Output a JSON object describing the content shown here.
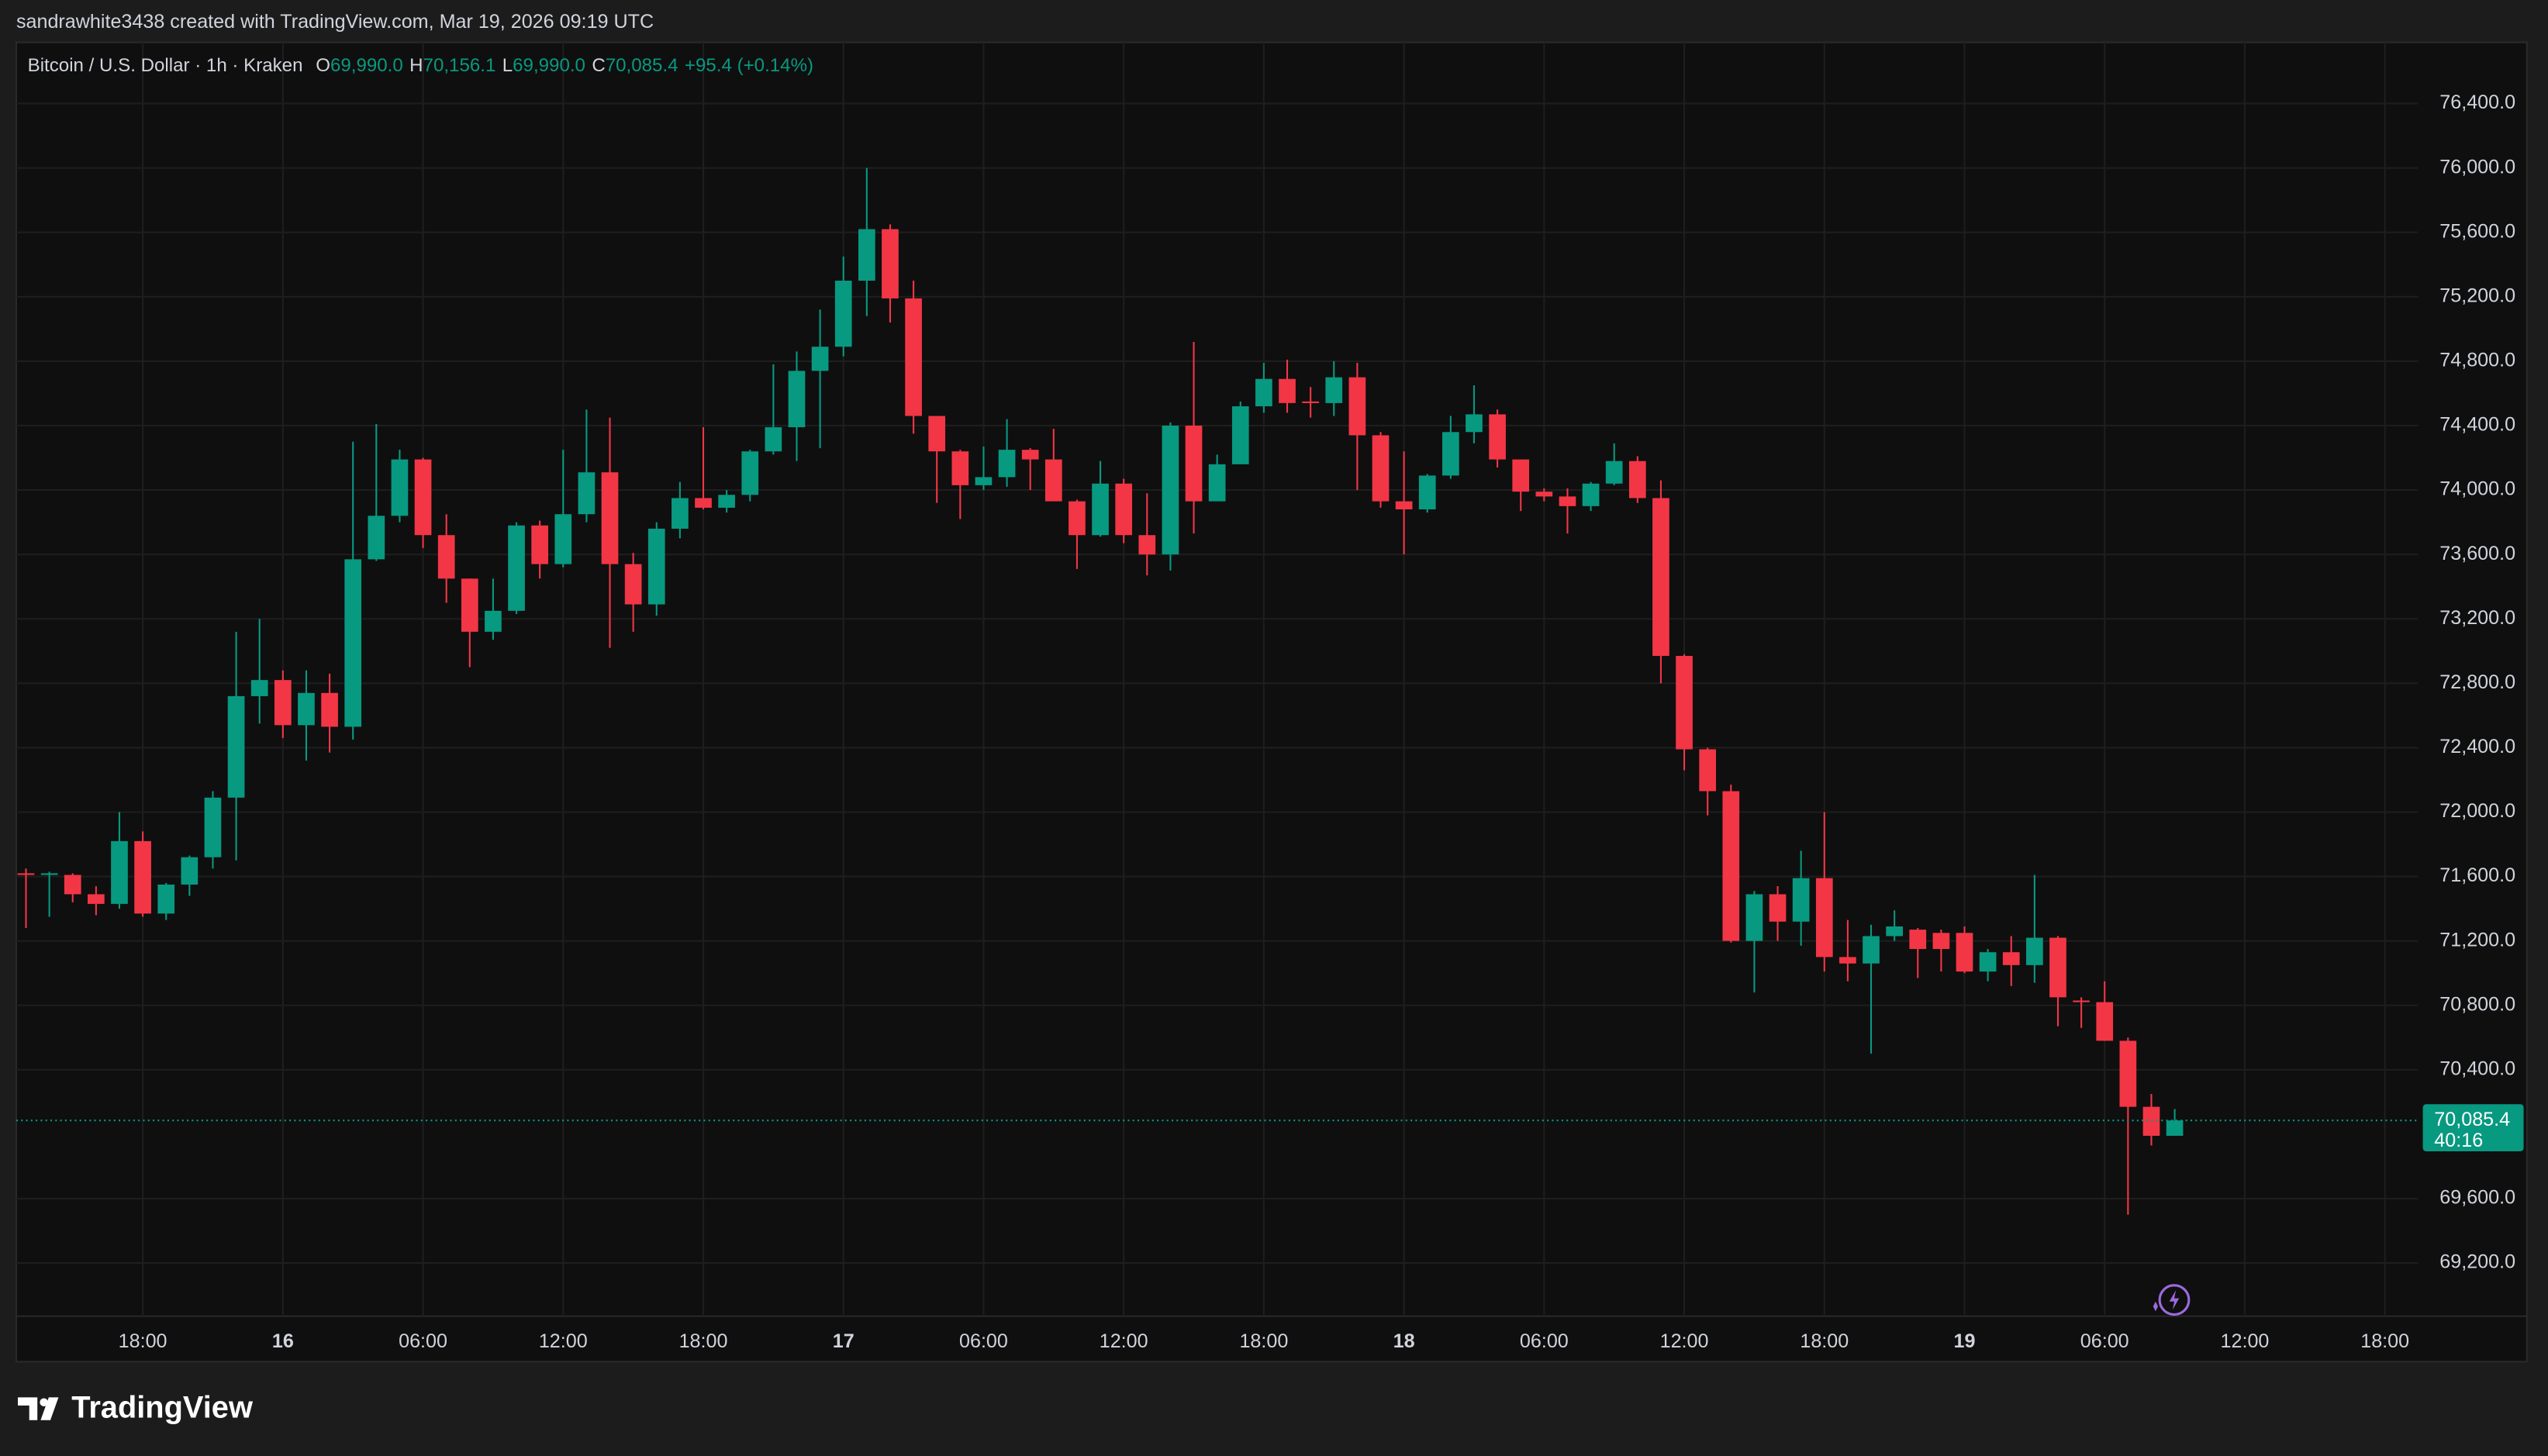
{
  "header": "sandrawhite3438 created with TradingView.com, Mar 19, 2026 09:19 UTC",
  "footer_logo": "TradingView",
  "chart_data": {
    "type": "candlestick",
    "title": "Bitcoin / U.S. Dollar · 1h · Kraken",
    "ohlc_legend": [
      {
        "label": "O",
        "value": "69,990.0"
      },
      {
        "label": "H",
        "value": "70,156.1"
      },
      {
        "label": "L",
        "value": "69,990.0"
      },
      {
        "label": "C",
        "value": "70,085.4"
      }
    ],
    "change": "+95.4 (+0.14%)",
    "last_price_label": "70,085.4",
    "countdown": "40:16",
    "up_color": "#089981",
    "down_color": "#f23645",
    "grid": true,
    "x": [
      "15 13:00",
      "15 14:00",
      "15 15:00",
      "15 16:00",
      "15 17:00",
      "15 18:00",
      "15 19:00",
      "15 20:00",
      "15 21:00",
      "15 22:00",
      "15 23:00",
      "16 00:00",
      "16 01:00",
      "16 02:00",
      "16 03:00",
      "16 04:00",
      "16 05:00",
      "16 06:00",
      "16 07:00",
      "16 08:00",
      "16 09:00",
      "16 10:00",
      "16 11:00",
      "16 12:00",
      "16 13:00",
      "16 14:00",
      "16 15:00",
      "16 16:00",
      "16 17:00",
      "16 18:00",
      "16 19:00",
      "16 20:00",
      "16 21:00",
      "16 22:00",
      "16 23:00",
      "17 00:00",
      "17 01:00",
      "17 02:00",
      "17 03:00",
      "17 04:00",
      "17 05:00",
      "17 06:00",
      "17 07:00",
      "17 08:00",
      "17 09:00",
      "17 10:00",
      "17 11:00",
      "17 12:00",
      "17 13:00",
      "17 14:00",
      "17 15:00",
      "17 16:00",
      "17 17:00",
      "17 18:00",
      "17 19:00",
      "17 20:00",
      "17 21:00",
      "17 22:00",
      "17 23:00",
      "18 00:00",
      "18 01:00",
      "18 02:00",
      "18 03:00",
      "18 04:00",
      "18 05:00",
      "18 06:00",
      "18 07:00",
      "18 08:00",
      "18 09:00",
      "18 10:00",
      "18 11:00",
      "18 12:00",
      "18 13:00",
      "18 14:00",
      "18 15:00",
      "18 16:00",
      "18 17:00",
      "18 18:00",
      "18 19:00",
      "18 20:00",
      "18 21:00",
      "18 22:00",
      "18 23:00",
      "19 00:00",
      "19 01:00",
      "19 02:00",
      "19 03:00",
      "19 04:00",
      "19 05:00",
      "19 06:00",
      "19 07:00",
      "19 08:00",
      "19 09:00"
    ],
    "open": [
      71620,
      71610,
      71610,
      71490,
      71430,
      71820,
      71370,
      71550,
      71720,
      72090,
      72720,
      72820,
      72540,
      72740,
      72530,
      73570,
      73840,
      74190,
      73720,
      73450,
      73120,
      73250,
      73780,
      73540,
      73850,
      74110,
      73540,
      73290,
      73760,
      73950,
      73890,
      73970,
      74240,
      74390,
      74740,
      74890,
      75300,
      75620,
      75190,
      74460,
      74240,
      74030,
      74080,
      74250,
      74190,
      73930,
      73720,
      74040,
      73720,
      73600,
      74400,
      73930,
      74160,
      74520,
      74690,
      74550,
      74540,
      74700,
      74340,
      73930,
      73880,
      74090,
      74360,
      74470,
      74190,
      73990,
      73960,
      73900,
      74040,
      74180,
      73950,
      72970,
      72390,
      72130,
      71200,
      71490,
      71320,
      71590,
      71100,
      71060,
      71230,
      71270,
      71250,
      71250,
      71010,
      71130,
      71050,
      71220,
      70830,
      70820,
      70580,
      70170,
      69990
    ],
    "high": [
      71650,
      71630,
      71620,
      71540,
      72000,
      71880,
      71560,
      71730,
      72130,
      73120,
      73200,
      72880,
      72880,
      72860,
      74300,
      74410,
      74250,
      74200,
      73850,
      73450,
      73450,
      73800,
      73810,
      74250,
      74500,
      74450,
      73610,
      73800,
      74050,
      74390,
      74000,
      74250,
      74780,
      74860,
      75120,
      75450,
      76000,
      75650,
      75300,
      74460,
      74250,
      74270,
      74440,
      74260,
      74380,
      73940,
      74180,
      74070,
      73980,
      74420,
      74920,
      74220,
      74550,
      74790,
      74810,
      74640,
      74800,
      74790,
      74360,
      74240,
      74100,
      74460,
      74650,
      74500,
      74190,
      74010,
      74010,
      74050,
      74290,
      74210,
      74060,
      72980,
      72400,
      72170,
      71510,
      71540,
      71760,
      72000,
      71330,
      71300,
      71390,
      71280,
      71270,
      71290,
      71150,
      71230,
      71610,
      71230,
      70850,
      70950,
      70600,
      70250,
      70156.1
    ],
    "low": [
      71280,
      71350,
      71440,
      71360,
      71400,
      71350,
      71330,
      71480,
      71650,
      71700,
      72550,
      72460,
      72320,
      72370,
      72450,
      73560,
      73800,
      73640,
      73300,
      72900,
      73070,
      73230,
      73450,
      73520,
      73800,
      73020,
      73120,
      73220,
      73700,
      73880,
      73860,
      73930,
      74220,
      74180,
      74260,
      74830,
      75080,
      75040,
      74350,
      73920,
      73820,
      74000,
      74020,
      74000,
      73930,
      73510,
      73710,
      73670,
      73470,
      73500,
      73730,
      73940,
      74170,
      74480,
      74480,
      74450,
      74460,
      74000,
      73890,
      73600,
      73860,
      74070,
      74290,
      74140,
      73870,
      73930,
      73730,
      73870,
      74030,
      73920,
      72800,
      72260,
      71980,
      71190,
      70880,
      71200,
      71170,
      71010,
      70950,
      70500,
      71200,
      70970,
      71010,
      71000,
      70950,
      70920,
      70940,
      70670,
      70660,
      70580,
      69500,
      69930,
      69990
    ],
    "close": [
      71610,
      71620,
      71490,
      71430,
      71820,
      71370,
      71550,
      71720,
      72090,
      72720,
      72820,
      72540,
      72740,
      72530,
      73570,
      73840,
      74190,
      73720,
      73450,
      73120,
      73250,
      73780,
      73540,
      73850,
      74110,
      73540,
      73290,
      73760,
      73950,
      73890,
      73970,
      74240,
      74390,
      74740,
      74890,
      75300,
      75620,
      75190,
      74460,
      74240,
      74030,
      74080,
      74250,
      74190,
      73930,
      73720,
      74040,
      73720,
      73600,
      74400,
      73930,
      74160,
      74520,
      74690,
      74540,
      74540,
      74700,
      74340,
      73930,
      73880,
      74090,
      74360,
      74470,
      74190,
      73990,
      73960,
      73900,
      74040,
      74180,
      73950,
      72970,
      72390,
      72130,
      71200,
      71490,
      71320,
      71590,
      71100,
      71060,
      71230,
      71290,
      71150,
      71150,
      71010,
      71130,
      71050,
      71220,
      70850,
      70820,
      70580,
      70170,
      69990,
      70085.4
    ],
    "xlim": [
      "15 12:35",
      "19 19:25"
    ],
    "xticks": [
      {
        "value": "15 18:00",
        "label": "18:00"
      },
      {
        "value": "16 00:00",
        "label": "16"
      },
      {
        "value": "16 06:00",
        "label": "06:00"
      },
      {
        "value": "16 12:00",
        "label": "12:00"
      },
      {
        "value": "16 18:00",
        "label": "18:00"
      },
      {
        "value": "17 00:00",
        "label": "17"
      },
      {
        "value": "17 06:00",
        "label": "06:00"
      },
      {
        "value": "17 12:00",
        "label": "12:00"
      },
      {
        "value": "17 18:00",
        "label": "18:00"
      },
      {
        "value": "18 00:00",
        "label": "18"
      },
      {
        "value": "18 06:00",
        "label": "06:00"
      },
      {
        "value": "18 12:00",
        "label": "12:00"
      },
      {
        "value": "18 18:00",
        "label": "18:00"
      },
      {
        "value": "19 00:00",
        "label": "19"
      },
      {
        "value": "19 06:00",
        "label": "06:00"
      },
      {
        "value": "19 12:00",
        "label": "12:00"
      },
      {
        "value": "19 18:00",
        "label": "18:00"
      }
    ],
    "ylim": [
      68870,
      76780
    ],
    "yticks": [
      {
        "value": 69200,
        "label": "69,200.0"
      },
      {
        "value": 69600,
        "label": "69,600.0"
      },
      {
        "value": 70400,
        "label": "70,400.0"
      },
      {
        "value": 70800,
        "label": "70,800.0"
      },
      {
        "value": 71200,
        "label": "71,200.0"
      },
      {
        "value": 71600,
        "label": "71,600.0"
      },
      {
        "value": 72000,
        "label": "72,000.0"
      },
      {
        "value": 72400,
        "label": "72,400.0"
      },
      {
        "value": 72800,
        "label": "72,800.0"
      },
      {
        "value": 73200,
        "label": "73,200.0"
      },
      {
        "value": 73600,
        "label": "73,600.0"
      },
      {
        "value": 74000,
        "label": "74,000.0"
      },
      {
        "value": 74400,
        "label": "74,400.0"
      },
      {
        "value": 74800,
        "label": "74,800.0"
      },
      {
        "value": 75200,
        "label": "75,200.0"
      },
      {
        "value": 75600,
        "label": "75,600.0"
      },
      {
        "value": 76000,
        "label": "76,000.0"
      },
      {
        "value": 76400,
        "label": "76,400.0"
      }
    ]
  }
}
